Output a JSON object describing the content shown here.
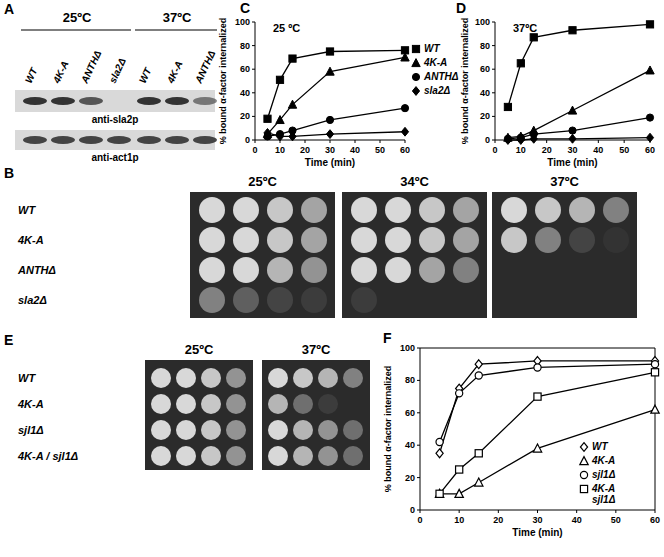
{
  "chart_data": [
    {
      "type": "line",
      "title": "25 ºC",
      "annotations": [
        "C"
      ],
      "xlabel": "Time (min)",
      "ylabel": "% bound α-factor internalized",
      "x": [
        5,
        10,
        15,
        30,
        60
      ],
      "xlim": [
        0,
        60
      ],
      "xticks": [
        0,
        10,
        20,
        30,
        40,
        50,
        60
      ],
      "ylim": [
        0,
        100
      ],
      "yticks": [
        0,
        20,
        40,
        60,
        80,
        100
      ],
      "legend": "right",
      "series": [
        {
          "name": "WT",
          "color": "#000000",
          "marker": "square",
          "values": [
            18,
            51,
            69,
            75,
            76
          ]
        },
        {
          "name": "4K-A",
          "color": "#000000",
          "marker": "triangle",
          "values": [
            5,
            17,
            30,
            58,
            70
          ]
        },
        {
          "name": "ANTHΔ",
          "color": "#000000",
          "marker": "circle",
          "values": [
            3,
            5,
            8,
            17,
            27
          ]
        },
        {
          "name": "sla2Δ",
          "color": "#000000",
          "marker": "diamond",
          "values": [
            6,
            3,
            3,
            5,
            7
          ]
        }
      ]
    },
    {
      "type": "line",
      "title": "37ºC",
      "annotations": [
        "D"
      ],
      "xlabel": "Time (min)",
      "ylabel": "% bound α-factor internalized",
      "x": [
        5,
        10,
        15,
        30,
        60
      ],
      "xlim": [
        0,
        60
      ],
      "xticks": [
        0,
        10,
        20,
        30,
        40,
        50,
        60
      ],
      "ylim": [
        0,
        100
      ],
      "yticks": [
        0,
        20,
        40,
        60,
        80,
        100
      ],
      "series": [
        {
          "name": "WT",
          "color": "#000000",
          "marker": "square",
          "values": [
            28,
            65,
            87,
            93,
            98
          ]
        },
        {
          "name": "4K-A",
          "color": "#000000",
          "marker": "triangle",
          "values": [
            2,
            3,
            8,
            25,
            59
          ]
        },
        {
          "name": "ANTHΔ",
          "color": "#000000",
          "marker": "circle",
          "values": [
            1,
            2,
            5,
            8,
            19
          ]
        },
        {
          "name": "sla2Δ",
          "color": "#000000",
          "marker": "diamond",
          "values": [
            0,
            0,
            1,
            1,
            2
          ]
        }
      ]
    },
    {
      "type": "line",
      "annotations": [
        "F"
      ],
      "xlabel": "Time (min)",
      "ylabel": "% bound α-factor internalized",
      "x": [
        5,
        10,
        15,
        30,
        60
      ],
      "xlim": [
        0,
        60
      ],
      "xticks": [
        0,
        10,
        20,
        30,
        40,
        50,
        60
      ],
      "ylim": [
        0,
        100
      ],
      "yticks": [
        0,
        20,
        40,
        60,
        80,
        100
      ],
      "legend": "lower right",
      "series": [
        {
          "name": "WT",
          "color": "#000000",
          "marker": "open-diamond",
          "values": [
            35,
            75,
            90,
            92,
            92
          ]
        },
        {
          "name": "4K-A",
          "color": "#000000",
          "marker": "open-triangle",
          "values": [
            10,
            10,
            17,
            38,
            62
          ]
        },
        {
          "name": "sjl1Δ",
          "color": "#000000",
          "marker": "open-circle",
          "values": [
            42,
            72,
            83,
            88,
            90
          ]
        },
        {
          "name": "4K-A sjl1Δ",
          "color": "#000000",
          "marker": "open-square",
          "values": [
            10,
            25,
            35,
            70,
            85
          ]
        }
      ]
    }
  ],
  "blot": {
    "label": "A",
    "groups": [
      {
        "text": "25ºC",
        "strains": [
          "WT",
          "4K-A",
          "ANTHΔ",
          "sla2Δ"
        ]
      },
      {
        "text": "37ºC",
        "strains": [
          "WT",
          "4K-A",
          "ANTHΔ"
        ]
      }
    ],
    "rows": [
      {
        "antibody": "anti-sla2p",
        "bands": [
          1,
          1,
          0.8,
          0,
          1,
          1,
          0.6
        ]
      },
      {
        "antibody": "anti-act1p",
        "bands": [
          0.9,
          0.9,
          0.9,
          0.9,
          0.9,
          0.9,
          0.9
        ]
      }
    ]
  },
  "spot_assays": [
    {
      "label": "B",
      "temperatures": [
        "25ºC",
        "34ºC",
        "37ºC"
      ],
      "strains": [
        "WT",
        "4K-A",
        "ANTHΔ",
        "sla2Δ"
      ],
      "growth": [
        [
          [
            1,
            1,
            0.9,
            0.7
          ],
          [
            1,
            1,
            0.9,
            0.7
          ],
          [
            1,
            1,
            0.8,
            0.6
          ],
          [
            0.5,
            0.3,
            0.15,
            0.1
          ]
        ],
        [
          [
            1,
            1,
            0.9,
            0.7
          ],
          [
            1,
            1,
            0.9,
            0.7
          ],
          [
            1,
            1,
            0.7,
            0.5
          ],
          [
            0.1,
            0,
            0,
            0
          ]
        ],
        [
          [
            1,
            0.9,
            0.8,
            0.5
          ],
          [
            0.9,
            0.5,
            0.15,
            0.05
          ],
          [
            0,
            0,
            0,
            0
          ],
          [
            0,
            0,
            0,
            0
          ]
        ]
      ]
    },
    {
      "label": "E",
      "temperatures": [
        "25ºC",
        "37ºC"
      ],
      "strains": [
        "WT",
        "4K-A",
        "sjl1Δ",
        "4K-A / sjl1Δ"
      ],
      "growth": [
        [
          [
            1,
            1,
            0.9,
            0.6
          ],
          [
            1,
            1,
            0.9,
            0.6
          ],
          [
            1,
            1,
            0.9,
            0.6
          ],
          [
            1,
            1,
            0.9,
            0.6
          ]
        ],
        [
          [
            1,
            0.9,
            0.8,
            0.5
          ],
          [
            0.8,
            0.4,
            0.1,
            0
          ],
          [
            1,
            0.8,
            0.6,
            0.4
          ],
          [
            1,
            0.8,
            0.6,
            0.4
          ]
        ]
      ]
    }
  ]
}
